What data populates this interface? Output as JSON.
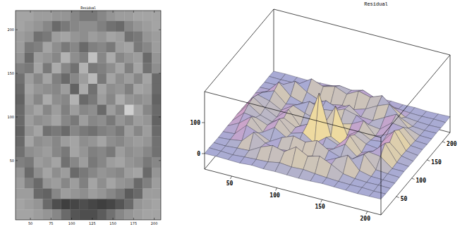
{
  "chart_data": [
    {
      "type": "heatmap",
      "title": "Residual",
      "x": [
        37.5,
        48.5,
        59.5,
        70.5,
        81.5,
        92.5,
        103.5,
        114.5,
        125.5,
        136.5,
        147.5,
        158.5,
        169.5,
        180.5,
        191.5,
        202.5
      ],
      "y": [
        216,
        204,
        192,
        180,
        168,
        156,
        144,
        132,
        120,
        108,
        96,
        84,
        72,
        60,
        48,
        36,
        24,
        12,
        0,
        -12
      ],
      "z": [
        [
          10,
          10,
          5,
          5,
          0,
          0,
          -10,
          -20,
          -20,
          -10,
          0,
          5,
          5,
          10,
          10,
          10
        ],
        [
          10,
          5,
          0,
          -10,
          -30,
          -20,
          -10,
          -5,
          -5,
          -15,
          -25,
          -30,
          -10,
          0,
          5,
          10
        ],
        [
          5,
          0,
          -25,
          -20,
          5,
          10,
          0,
          -5,
          5,
          0,
          10,
          5,
          -25,
          -20,
          0,
          5
        ],
        [
          5,
          -20,
          -15,
          10,
          -5,
          -20,
          -10,
          -30,
          -15,
          -10,
          -20,
          5,
          10,
          -20,
          -10,
          5
        ],
        [
          0,
          -30,
          5,
          0,
          -10,
          20,
          -5,
          -15,
          30,
          -10,
          15,
          -10,
          0,
          5,
          -30,
          0
        ],
        [
          -15,
          -20,
          10,
          -20,
          15,
          -10,
          -25,
          20,
          -20,
          -15,
          -5,
          10,
          -15,
          10,
          -25,
          -5
        ],
        [
          -25,
          5,
          -10,
          10,
          -15,
          -30,
          -10,
          5,
          25,
          -20,
          10,
          -5,
          5,
          -10,
          10,
          -30
        ],
        [
          -30,
          10,
          0,
          -5,
          -10,
          5,
          -35,
          15,
          -25,
          10,
          -5,
          0,
          -15,
          10,
          5,
          -30
        ],
        [
          -35,
          5,
          -10,
          15,
          -5,
          -10,
          20,
          -30,
          -20,
          5,
          -10,
          15,
          0,
          -5,
          0,
          -35
        ],
        [
          -30,
          0,
          10,
          -10,
          5,
          -15,
          5,
          -10,
          -5,
          -30,
          5,
          -10,
          40,
          10,
          -10,
          -30
        ],
        [
          -30,
          5,
          -5,
          0,
          10,
          -10,
          -20,
          5,
          -10,
          -5,
          -20,
          0,
          -10,
          5,
          0,
          -35
        ],
        [
          -35,
          0,
          10,
          -25,
          -20,
          -30,
          -10,
          -20,
          -25,
          -15,
          -10,
          -20,
          5,
          -10,
          5,
          -30
        ],
        [
          -30,
          10,
          -5,
          0,
          -10,
          5,
          10,
          -5,
          0,
          10,
          -5,
          -10,
          0,
          5,
          0,
          -25
        ],
        [
          -25,
          -5,
          0,
          5,
          -10,
          -20,
          10,
          0,
          -15,
          -10,
          -20,
          5,
          -5,
          0,
          -10,
          -25
        ],
        [
          -15,
          -20,
          5,
          0,
          10,
          -25,
          -10,
          5,
          -20,
          -10,
          5,
          10,
          0,
          -5,
          -20,
          -10
        ],
        [
          0,
          -30,
          -5,
          10,
          -5,
          5,
          -30,
          -20,
          -10,
          0,
          -5,
          -10,
          5,
          10,
          -30,
          0
        ],
        [
          5,
          -15,
          -30,
          0,
          5,
          -10,
          5,
          -15,
          10,
          -5,
          10,
          0,
          -5,
          -30,
          -15,
          5
        ],
        [
          5,
          5,
          -30,
          -35,
          -10,
          5,
          0,
          -5,
          5,
          0,
          -10,
          -20,
          -40,
          -30,
          5,
          5
        ],
        [
          10,
          5,
          0,
          -30,
          -50,
          -60,
          -55,
          -50,
          -55,
          -60,
          -55,
          -45,
          -30,
          0,
          5,
          10
        ],
        [
          10,
          10,
          5,
          0,
          -10,
          -30,
          -45,
          -50,
          -50,
          -40,
          -25,
          -10,
          0,
          5,
          10,
          10
        ]
      ],
      "zlim": [
        -90,
        70
      ],
      "xlim": [
        32,
        208
      ],
      "ylim": [
        -18,
        222
      ],
      "xticks": [
        50,
        75,
        100,
        125,
        150,
        175,
        200
      ],
      "yticks": [
        50,
        100,
        150,
        200
      ]
    },
    {
      "type": "surface",
      "title": "Residual",
      "x": [
        20,
        33,
        46,
        59,
        72,
        85,
        98,
        111,
        124,
        137,
        150,
        163,
        176,
        189,
        202,
        215
      ],
      "y": [
        0,
        15,
        30,
        45,
        60,
        75,
        90,
        105,
        120,
        135,
        150,
        165,
        180,
        195,
        210,
        225
      ],
      "z": [
        [
          0,
          1,
          0,
          -1,
          2,
          0,
          1,
          0,
          -1,
          0,
          2,
          1,
          0,
          -1,
          0,
          1
        ],
        [
          1,
          0,
          -2,
          1,
          3,
          5,
          12,
          8,
          10,
          6,
          3,
          1,
          0,
          1,
          -1,
          0
        ],
        [
          0,
          -1,
          2,
          4,
          25,
          40,
          30,
          55,
          35,
          45,
          28,
          8,
          2,
          0,
          1,
          0
        ],
        [
          -1,
          2,
          8,
          45,
          20,
          10,
          15,
          5,
          18,
          12,
          30,
          50,
          10,
          1,
          0,
          -1
        ],
        [
          0,
          3,
          40,
          25,
          8,
          30,
          45,
          35,
          50,
          28,
          15,
          20,
          45,
          5,
          2,
          0
        ],
        [
          1,
          20,
          50,
          10,
          35,
          12,
          5,
          10,
          8,
          15,
          40,
          10,
          35,
          30,
          1,
          1
        ],
        [
          0,
          35,
          30,
          15,
          45,
          8,
          20,
          -5,
          25,
          10,
          50,
          5,
          20,
          55,
          3,
          0
        ],
        [
          2,
          45,
          20,
          8,
          30,
          10,
          30,
          140,
          10,
          -10,
          35,
          15,
          10,
          40,
          6,
          -1
        ],
        [
          1,
          50,
          25,
          5,
          40,
          -5,
          15,
          20,
          90,
          5,
          30,
          10,
          15,
          60,
          5,
          0
        ],
        [
          0,
          40,
          30,
          10,
          35,
          20,
          10,
          0,
          15,
          25,
          45,
          5,
          20,
          45,
          4,
          1
        ],
        [
          -1,
          30,
          45,
          12,
          20,
          40,
          25,
          30,
          45,
          35,
          15,
          10,
          40,
          35,
          2,
          0
        ],
        [
          0,
          15,
          55,
          20,
          8,
          15,
          35,
          20,
          40,
          12,
          10,
          30,
          50,
          15,
          1,
          0
        ],
        [
          1,
          3,
          30,
          50,
          25,
          10,
          5,
          12,
          8,
          20,
          40,
          55,
          20,
          3,
          0,
          1
        ],
        [
          0,
          1,
          5,
          25,
          50,
          35,
          45,
          30,
          50,
          40,
          55,
          25,
          5,
          1,
          -1,
          0
        ],
        [
          1,
          0,
          1,
          3,
          8,
          20,
          30,
          25,
          35,
          20,
          10,
          4,
          1,
          0,
          1,
          0
        ],
        [
          0,
          1,
          0,
          -1,
          1,
          2,
          0,
          3,
          1,
          0,
          2,
          0,
          1,
          -1,
          0,
          1
        ]
      ],
      "xlim": [
        20,
        215
      ],
      "ylim": [
        0,
        225
      ],
      "zlim": [
        -50,
        200
      ],
      "xticks": [
        50,
        100,
        150,
        200
      ],
      "yticks": [
        50,
        100,
        150,
        200
      ],
      "zticks": [
        0,
        100
      ]
    }
  ]
}
